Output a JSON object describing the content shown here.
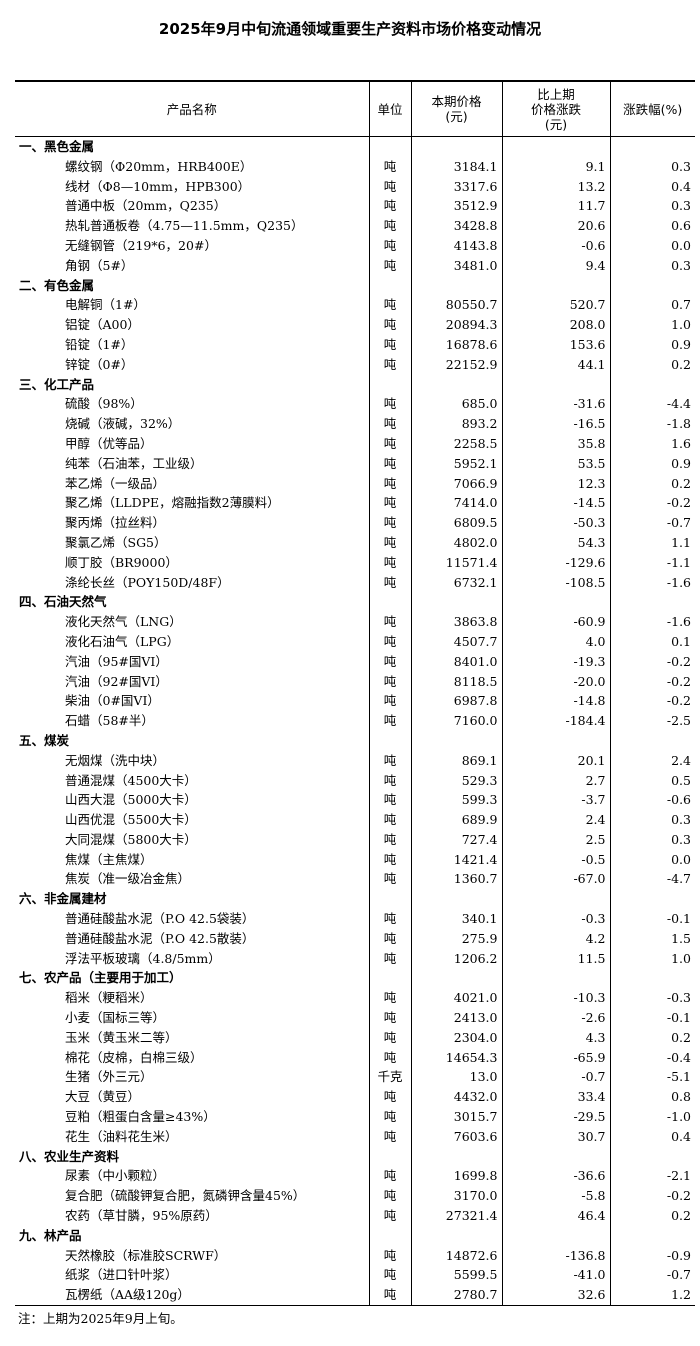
{
  "title": "2025年9月中旬流通领域重要生产资料市场价格变动情况",
  "headers": [
    "产品名称",
    "单位",
    "本期价格\n(元)",
    "比上期\n价格涨跌\n(元)",
    "涨跌幅(%)"
  ],
  "categories": [
    {
      "name": "一、黑色金属",
      "items": [
        [
          "螺纹钢（Φ20mm，HRB400E）",
          "吨",
          "3184.1",
          "9.1",
          "0.3"
        ],
        [
          "线材（Φ8—10mm，HPB300）",
          "吨",
          "3317.6",
          "13.2",
          "0.4"
        ],
        [
          "普通中板（20mm，Q235）",
          "吨",
          "3512.9",
          "11.7",
          "0.3"
        ],
        [
          "热轧普通板卷（4.75—11.5mm，Q235）",
          "吨",
          "3428.8",
          "20.6",
          "0.6"
        ],
        [
          "无缝钢管（219*6，20#）",
          "吨",
          "4143.8",
          "-0.6",
          "0.0"
        ],
        [
          "角钢（5#）",
          "吨",
          "3481.0",
          "9.4",
          "0.3"
        ]
      ]
    },
    {
      "name": "二、有色金属",
      "items": [
        [
          "电解铜（1#）",
          "吨",
          "80550.7",
          "520.7",
          "0.7"
        ],
        [
          "铝锭（A00）",
          "吨",
          "20894.3",
          "208.0",
          "1.0"
        ],
        [
          "铅锭（1#）",
          "吨",
          "16878.6",
          "153.6",
          "0.9"
        ],
        [
          "锌锭（0#）",
          "吨",
          "22152.9",
          "44.1",
          "0.2"
        ]
      ]
    },
    {
      "name": "三、化工产品",
      "items": [
        [
          "硫酸（98%）",
          "吨",
          "685.0",
          "-31.6",
          "-4.4"
        ],
        [
          "烧碱（液碱，32%）",
          "吨",
          "893.2",
          "-16.5",
          "-1.8"
        ],
        [
          "甲醇（优等品）",
          "吨",
          "2258.5",
          "35.8",
          "1.6"
        ],
        [
          "纯苯（石油苯，工业级）",
          "吨",
          "5952.1",
          "53.5",
          "0.9"
        ],
        [
          "苯乙烯（一级品）",
          "吨",
          "7066.9",
          "12.3",
          "0.2"
        ],
        [
          "聚乙烯（LLDPE，熔融指数2薄膜料）",
          "吨",
          "7414.0",
          "-14.5",
          "-0.2"
        ],
        [
          "聚丙烯（拉丝料）",
          "吨",
          "6809.5",
          "-50.3",
          "-0.7"
        ],
        [
          "聚氯乙烯（SG5）",
          "吨",
          "4802.0",
          "54.3",
          "1.1"
        ],
        [
          "顺丁胶（BR9000）",
          "吨",
          "11571.4",
          "-129.6",
          "-1.1"
        ],
        [
          "涤纶长丝（POY150D/48F）",
          "吨",
          "6732.1",
          "-108.5",
          "-1.6"
        ]
      ]
    },
    {
      "name": "四、石油天然气",
      "items": [
        [
          "液化天然气（LNG）",
          "吨",
          "3863.8",
          "-60.9",
          "-1.6"
        ],
        [
          "液化石油气（LPG）",
          "吨",
          "4507.7",
          "4.0",
          "0.1"
        ],
        [
          "汽油（95#国VI）",
          "吨",
          "8401.0",
          "-19.3",
          "-0.2"
        ],
        [
          "汽油（92#国VI）",
          "吨",
          "8118.5",
          "-20.0",
          "-0.2"
        ],
        [
          "柴油（0#国VI）",
          "吨",
          "6987.8",
          "-14.8",
          "-0.2"
        ],
        [
          "石蜡（58#半）",
          "吨",
          "7160.0",
          "-184.4",
          "-2.5"
        ]
      ]
    },
    {
      "name": "五、煤炭",
      "items": [
        [
          "无烟煤（洗中块）",
          "吨",
          "869.1",
          "20.1",
          "2.4"
        ],
        [
          "普通混煤（4500大卡）",
          "吨",
          "529.3",
          "2.7",
          "0.5"
        ],
        [
          "山西大混（5000大卡）",
          "吨",
          "599.3",
          "-3.7",
          "-0.6"
        ],
        [
          "山西优混（5500大卡）",
          "吨",
          "689.9",
          "2.4",
          "0.3"
        ],
        [
          "大同混煤（5800大卡）",
          "吨",
          "727.4",
          "2.5",
          "0.3"
        ],
        [
          "焦煤（主焦煤）",
          "吨",
          "1421.4",
          "-0.5",
          "0.0"
        ],
        [
          "焦炭（准一级冶金焦）",
          "吨",
          "1360.7",
          "-67.0",
          "-4.7"
        ]
      ]
    },
    {
      "name": "六、非金属建材",
      "items": [
        [
          "普通硅酸盐水泥（P.O 42.5袋装）",
          "吨",
          "340.1",
          "-0.3",
          "-0.1"
        ],
        [
          "普通硅酸盐水泥（P.O 42.5散装）",
          "吨",
          "275.9",
          "4.2",
          "1.5"
        ],
        [
          "浮法平板玻璃（4.8/5mm）",
          "吨",
          "1206.2",
          "11.5",
          "1.0"
        ]
      ]
    },
    {
      "name": "七、农产品（主要用于加工）",
      "items": [
        [
          "稻米（粳稻米）",
          "吨",
          "4021.0",
          "-10.3",
          "-0.3"
        ],
        [
          "小麦（国标三等）",
          "吨",
          "2413.0",
          "-2.6",
          "-0.1"
        ],
        [
          "玉米（黄玉米二等）",
          "吨",
          "2304.0",
          "4.3",
          "0.2"
        ],
        [
          "棉花（皮棉，白棉三级）",
          "吨",
          "14654.3",
          "-65.9",
          "-0.4"
        ],
        [
          "生猪（外三元）",
          "千克",
          "13.0",
          "-0.7",
          "-5.1"
        ],
        [
          "大豆（黄豆）",
          "吨",
          "4432.0",
          "33.4",
          "0.8"
        ],
        [
          "豆粕（粗蛋白含量≥43%）",
          "吨",
          "3015.7",
          "-29.5",
          "-1.0"
        ],
        [
          "花生（油料花生米）",
          "吨",
          "7603.6",
          "30.7",
          "0.4"
        ]
      ]
    },
    {
      "name": "八、农业生产资料",
      "items": [
        [
          "尿素（中小颗粒）",
          "吨",
          "1699.8",
          "-36.6",
          "-2.1"
        ],
        [
          "复合肥（硫酸钾复合肥，氮磷钾含量45%）",
          "吨",
          "3170.0",
          "-5.8",
          "-0.2"
        ],
        [
          "农药（草甘膦，95%原药）",
          "吨",
          "27321.4",
          "46.4",
          "0.2"
        ]
      ]
    },
    {
      "name": "九、林产品",
      "items": [
        [
          "天然橡胶（标准胶SCRWF）",
          "吨",
          "14872.6",
          "-136.8",
          "-0.9"
        ],
        [
          "纸浆（进口针叶浆）",
          "吨",
          "5599.5",
          "-41.0",
          "-0.7"
        ],
        [
          "瓦楞纸（AA级120g）",
          "吨",
          "2780.7",
          "32.6",
          "1.2"
        ]
      ]
    }
  ],
  "note": "注：上期为2025年9月上旬。"
}
